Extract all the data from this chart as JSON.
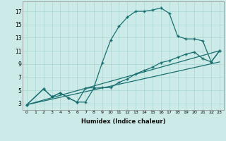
{
  "xlabel": "Humidex (Indice chaleur)",
  "bg_color": "#cceae7",
  "line_color": "#1a7070",
  "grid_color": "#aad8d4",
  "xlim": [
    -0.5,
    23.5
  ],
  "ylim": [
    2.0,
    18.5
  ],
  "xticks": [
    0,
    1,
    2,
    3,
    4,
    5,
    6,
    7,
    8,
    9,
    10,
    11,
    12,
    13,
    14,
    15,
    16,
    17,
    18,
    19,
    20,
    21,
    22,
    23
  ],
  "yticks": [
    3,
    5,
    7,
    9,
    11,
    13,
    15,
    17
  ],
  "line1_x": [
    0,
    2,
    3,
    4,
    5,
    6,
    7,
    8,
    9,
    10,
    11,
    12,
    13,
    14,
    15,
    16,
    17,
    18,
    19,
    20,
    21,
    22,
    23
  ],
  "line1_y": [
    2.8,
    5.2,
    4.0,
    4.6,
    3.8,
    3.2,
    3.2,
    5.3,
    5.4,
    5.4,
    6.2,
    6.7,
    7.5,
    8.0,
    8.5,
    9.2,
    9.5,
    10.0,
    10.5,
    10.8,
    9.8,
    9.3,
    11.0
  ],
  "line2_x": [
    0,
    2,
    3,
    4,
    5,
    6,
    7,
    8,
    9,
    10,
    11,
    12,
    13,
    14,
    15,
    16,
    17,
    18,
    19,
    20,
    21,
    22,
    23
  ],
  "line2_y": [
    2.8,
    5.2,
    4.0,
    4.6,
    3.8,
    3.2,
    5.3,
    5.4,
    9.2,
    12.6,
    14.7,
    16.1,
    17.0,
    17.0,
    17.2,
    17.5,
    16.7,
    13.2,
    12.8,
    12.8,
    12.5,
    9.3,
    11.0
  ],
  "line3_x": [
    0,
    23
  ],
  "line3_y": [
    2.8,
    11.0
  ],
  "line4_x": [
    0,
    23
  ],
  "line4_y": [
    2.8,
    9.3
  ]
}
